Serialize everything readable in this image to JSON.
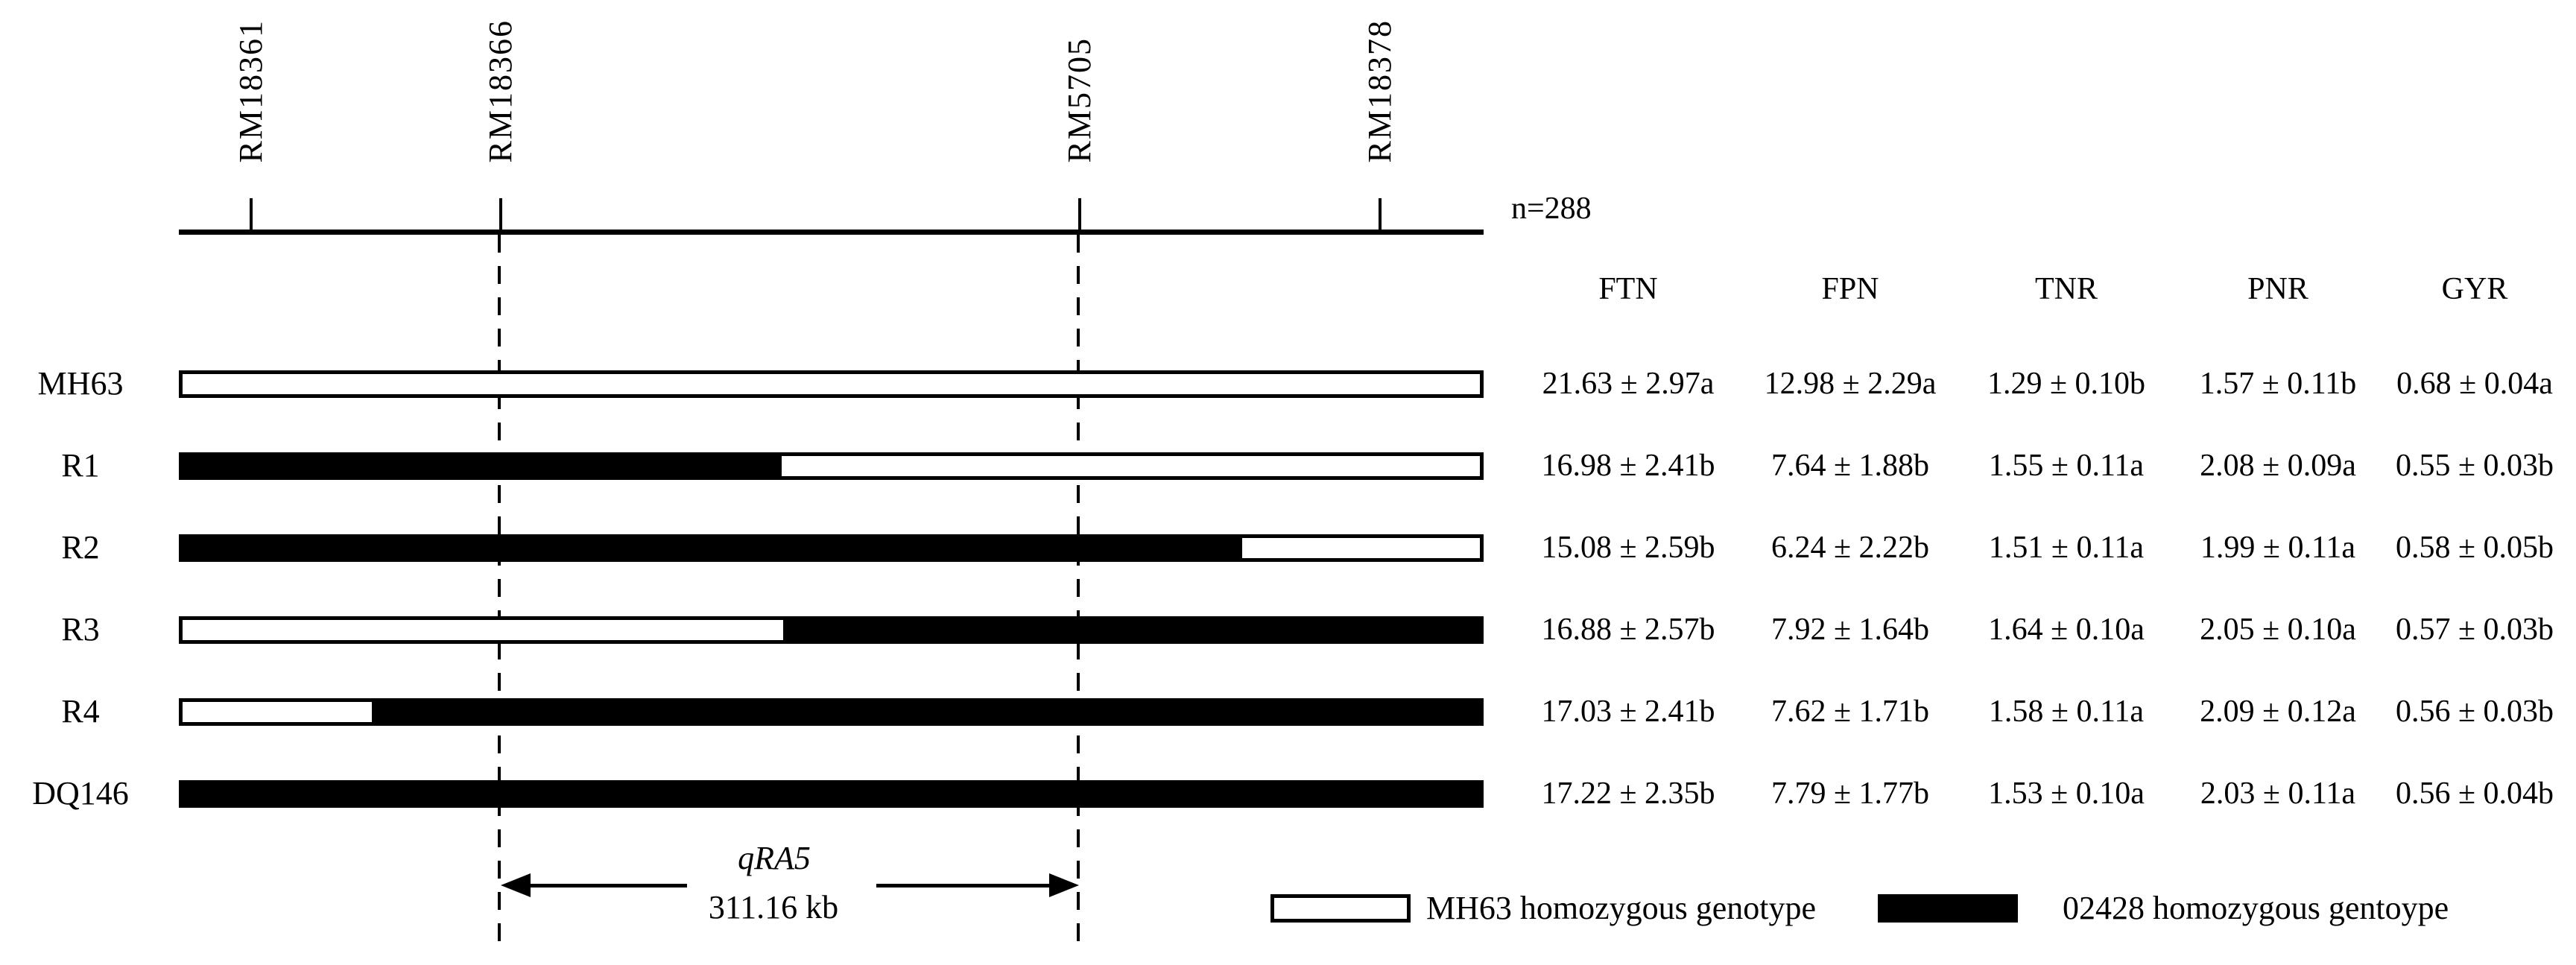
{
  "figure": {
    "population_label": "n=288",
    "markers": [
      {
        "label": "RM18361",
        "dashed": false
      },
      {
        "label": "RM18366",
        "dashed": true
      },
      {
        "label": "RM5705",
        "dashed": true
      },
      {
        "label": "RM18378",
        "dashed": false
      }
    ],
    "qtl": {
      "name": "qRA5",
      "size_label": "311.16 kb"
    }
  },
  "genotype_colors": {
    "MH63": "#FFFFFF",
    "02428": "#000000"
  },
  "table": {
    "columns": [
      "FTN",
      "FPN",
      "TNR",
      "PNR",
      "GYR"
    ]
  },
  "rows": [
    {
      "name": "MH63",
      "segments": [
        {
          "genotype": "MH63",
          "start_pct": 0,
          "end_pct": 100
        }
      ],
      "values": [
        "21.63 ± 2.97a",
        "12.98 ± 2.29a",
        "1.29 ± 0.10b",
        "1.57 ± 0.11b",
        "0.68 ± 0.04a"
      ]
    },
    {
      "name": "R1",
      "segments": [
        {
          "genotype": "02428",
          "start_pct": 0,
          "end_pct": 46.2
        },
        {
          "genotype": "MH63",
          "start_pct": 46.2,
          "end_pct": 100
        }
      ],
      "values": [
        "16.98 ± 2.41b",
        "7.64 ± 1.88b",
        "1.55 ± 0.11a",
        "2.08 ± 0.09a",
        "0.55 ± 0.03b"
      ]
    },
    {
      "name": "R2",
      "segments": [
        {
          "genotype": "02428",
          "start_pct": 0,
          "end_pct": 81.7
        },
        {
          "genotype": "MH63",
          "start_pct": 81.7,
          "end_pct": 100
        }
      ],
      "values": [
        "15.08 ± 2.59b",
        "6.24 ± 2.22b",
        "1.51 ± 0.11a",
        "1.99 ± 0.11a",
        "0.58 ± 0.05b"
      ]
    },
    {
      "name": "R3",
      "segments": [
        {
          "genotype": "MH63",
          "start_pct": 0,
          "end_pct": 46.3
        },
        {
          "genotype": "02428",
          "start_pct": 46.3,
          "end_pct": 100
        }
      ],
      "values": [
        "16.88 ± 2.57b",
        "7.92 ± 1.64b",
        "1.64 ± 0.10a",
        "2.05 ± 0.10a",
        "0.57 ± 0.03b"
      ]
    },
    {
      "name": "R4",
      "segments": [
        {
          "genotype": "MH63",
          "start_pct": 0,
          "end_pct": 14.6
        },
        {
          "genotype": "02428",
          "start_pct": 14.6,
          "end_pct": 100
        }
      ],
      "values": [
        "17.03 ± 2.41b",
        "7.62 ± 1.71b",
        "1.58 ± 0.11a",
        "2.09 ± 0.12a",
        "0.56 ± 0.03b"
      ]
    },
    {
      "name": "DQ146",
      "segments": [
        {
          "genotype": "02428",
          "start_pct": 0,
          "end_pct": 100
        }
      ],
      "values": [
        "17.22 ± 2.35b",
        "7.79 ± 1.77b",
        "1.53 ± 0.10a",
        "2.03 ± 0.11a",
        "0.56 ± 0.04b"
      ]
    }
  ],
  "legend": [
    {
      "genotype": "MH63",
      "label": "MH63 homozygous genotype",
      "color": "#FFFFFF"
    },
    {
      "genotype": "02428",
      "label": "02428 homozygous gentoype",
      "color": "#000000"
    }
  ]
}
